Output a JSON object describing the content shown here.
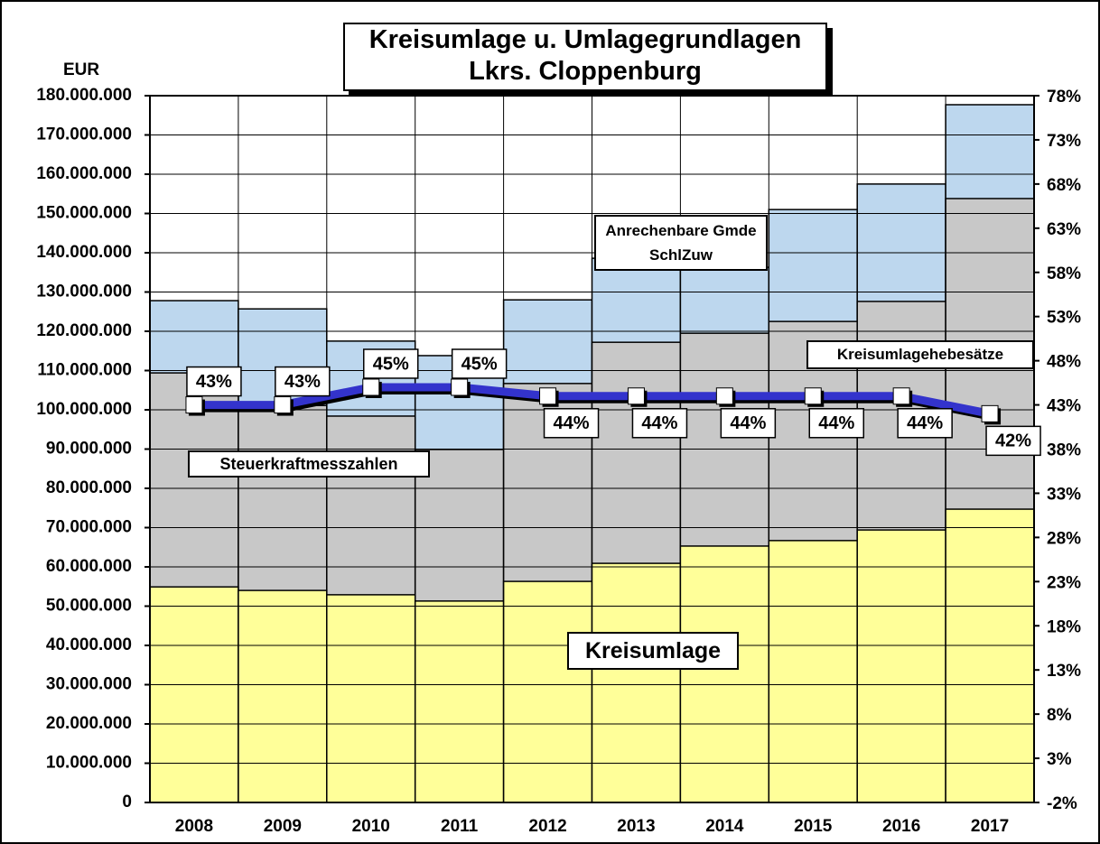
{
  "chart_data": {
    "type": "bar",
    "title": "Kreisumlage u. Umlagegrundlagen",
    "subtitle": "Lkrs. Cloppenburg",
    "y_label": "EUR",
    "categories": [
      "2008",
      "2009",
      "2010",
      "2011",
      "2012",
      "2013",
      "2014",
      "2015",
      "2016",
      "2017"
    ],
    "series": [
      {
        "name": "Anrechenbare Gmde SchlZuw",
        "color": "#bdd7ee",
        "values": [
          127800000,
          125700000,
          117500000,
          113800000,
          128000000,
          138600000,
          136300000,
          151000000,
          157500000,
          177700000
        ]
      },
      {
        "name": "Steuerkraftmesszahlen",
        "color": "#c8c8c8",
        "values": [
          109400000,
          101100000,
          98400000,
          89900000,
          106700000,
          117200000,
          119500000,
          122500000,
          127600000,
          153800000
        ]
      },
      {
        "name": "Kreisumlage",
        "color": "#ffff99",
        "values": [
          54900000,
          54000000,
          52900000,
          51300000,
          56300000,
          60900000,
          65300000,
          66700000,
          69400000,
          74700000
        ]
      },
      {
        "name": "Kreisumlagehebesätze",
        "color": "#3333cc",
        "axis": "y2",
        "values": [
          43,
          43,
          45,
          45,
          44,
          44,
          44,
          44,
          44,
          42
        ],
        "value_labels": [
          "43%",
          "43%",
          "45%",
          "45%",
          "44%",
          "44%",
          "44%",
          "44%",
          "44%",
          "42%"
        ]
      }
    ],
    "ylim": [
      0,
      180000000
    ],
    "yticks": [
      {
        "value": 0,
        "label": "0"
      },
      {
        "value": 10000000,
        "label": "10.000.000"
      },
      {
        "value": 20000000,
        "label": "20.000.000"
      },
      {
        "value": 30000000,
        "label": "30.000.000"
      },
      {
        "value": 40000000,
        "label": "40.000.000"
      },
      {
        "value": 50000000,
        "label": "50.000.000"
      },
      {
        "value": 60000000,
        "label": "60.000.000"
      },
      {
        "value": 70000000,
        "label": "70.000.000"
      },
      {
        "value": 80000000,
        "label": "80.000.000"
      },
      {
        "value": 90000000,
        "label": "90.000.000"
      },
      {
        "value": 100000000,
        "label": "100.000.000"
      },
      {
        "value": 110000000,
        "label": "110.000.000"
      },
      {
        "value": 120000000,
        "label": "120.000.000"
      },
      {
        "value": 130000000,
        "label": "130.000.000"
      },
      {
        "value": 140000000,
        "label": "140.000.000"
      },
      {
        "value": 150000000,
        "label": "150.000.000"
      },
      {
        "value": 160000000,
        "label": "160.000.000"
      },
      {
        "value": 170000000,
        "label": "170.000.000"
      },
      {
        "value": 180000000,
        "label": "180.000.000"
      }
    ],
    "y2lim": [
      -2,
      78
    ],
    "y2ticks": [
      {
        "value": -2,
        "label": "-2%"
      },
      {
        "value": 3,
        "label": "3%"
      },
      {
        "value": 8,
        "label": "8%"
      },
      {
        "value": 13,
        "label": "13%"
      },
      {
        "value": 18,
        "label": "18%"
      },
      {
        "value": 23,
        "label": "23%"
      },
      {
        "value": 28,
        "label": "28%"
      },
      {
        "value": 33,
        "label": "33%"
      },
      {
        "value": 38,
        "label": "38%"
      },
      {
        "value": 43,
        "label": "43%"
      },
      {
        "value": 48,
        "label": "48%"
      },
      {
        "value": 53,
        "label": "53%"
      },
      {
        "value": 58,
        "label": "58%"
      },
      {
        "value": 63,
        "label": "63%"
      },
      {
        "value": 68,
        "label": "68%"
      },
      {
        "value": 73,
        "label": "73%"
      },
      {
        "value": 78,
        "label": "78%"
      }
    ],
    "grid": true
  }
}
